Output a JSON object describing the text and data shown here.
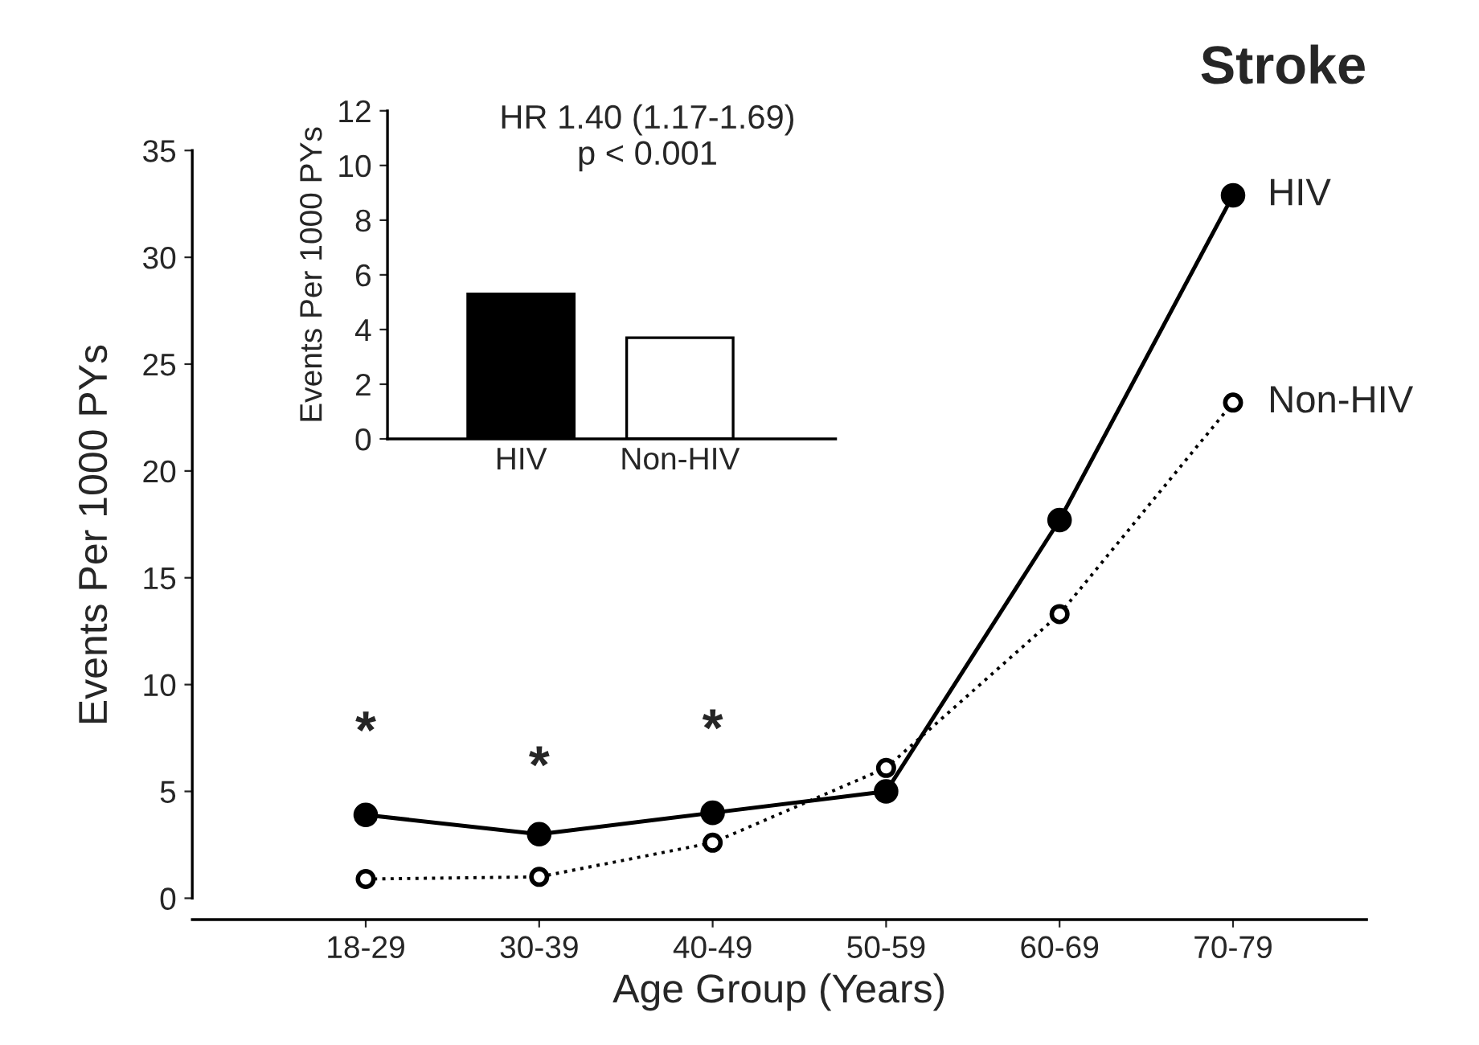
{
  "chart_data": [
    {
      "type": "line",
      "title": "Stroke",
      "xlabel": "Age Group (Years)",
      "ylabel": "Events Per 1000 PYs",
      "categories": [
        "18-29",
        "30-39",
        "40-49",
        "50-59",
        "60-69",
        "70-79"
      ],
      "series": [
        {
          "name": "HIV",
          "color": "#000000",
          "line_style": "solid",
          "values": [
            3.9,
            3.0,
            4.0,
            5.0,
            17.7,
            32.9
          ]
        },
        {
          "name": "Non-HIV",
          "color": "#ffffff",
          "line_style": "dotted",
          "values": [
            0.9,
            1.0,
            2.6,
            6.1,
            13.3,
            23.2
          ]
        }
      ],
      "marker": "circle",
      "ylim": [
        -1,
        35
      ],
      "yticks": [
        0,
        5,
        10,
        15,
        20,
        25,
        30,
        35
      ],
      "grid": false,
      "legend": false,
      "annotations": [
        "*",
        "*",
        "*"
      ]
    },
    {
      "type": "bar",
      "title": "HR 1.40 (1.17-1.69)",
      "subtitle": "p < 0.001",
      "ylabel": "Events Per 1000 PYs",
      "categories": [
        "HIV",
        "Non-HIV"
      ],
      "values": [
        5.3,
        3.7
      ],
      "colors": [
        "#000000",
        "#ffffff"
      ],
      "ylim": [
        0,
        12
      ],
      "yticks": [
        0,
        2,
        4,
        6,
        8,
        10,
        12
      ],
      "grid": false
    }
  ]
}
